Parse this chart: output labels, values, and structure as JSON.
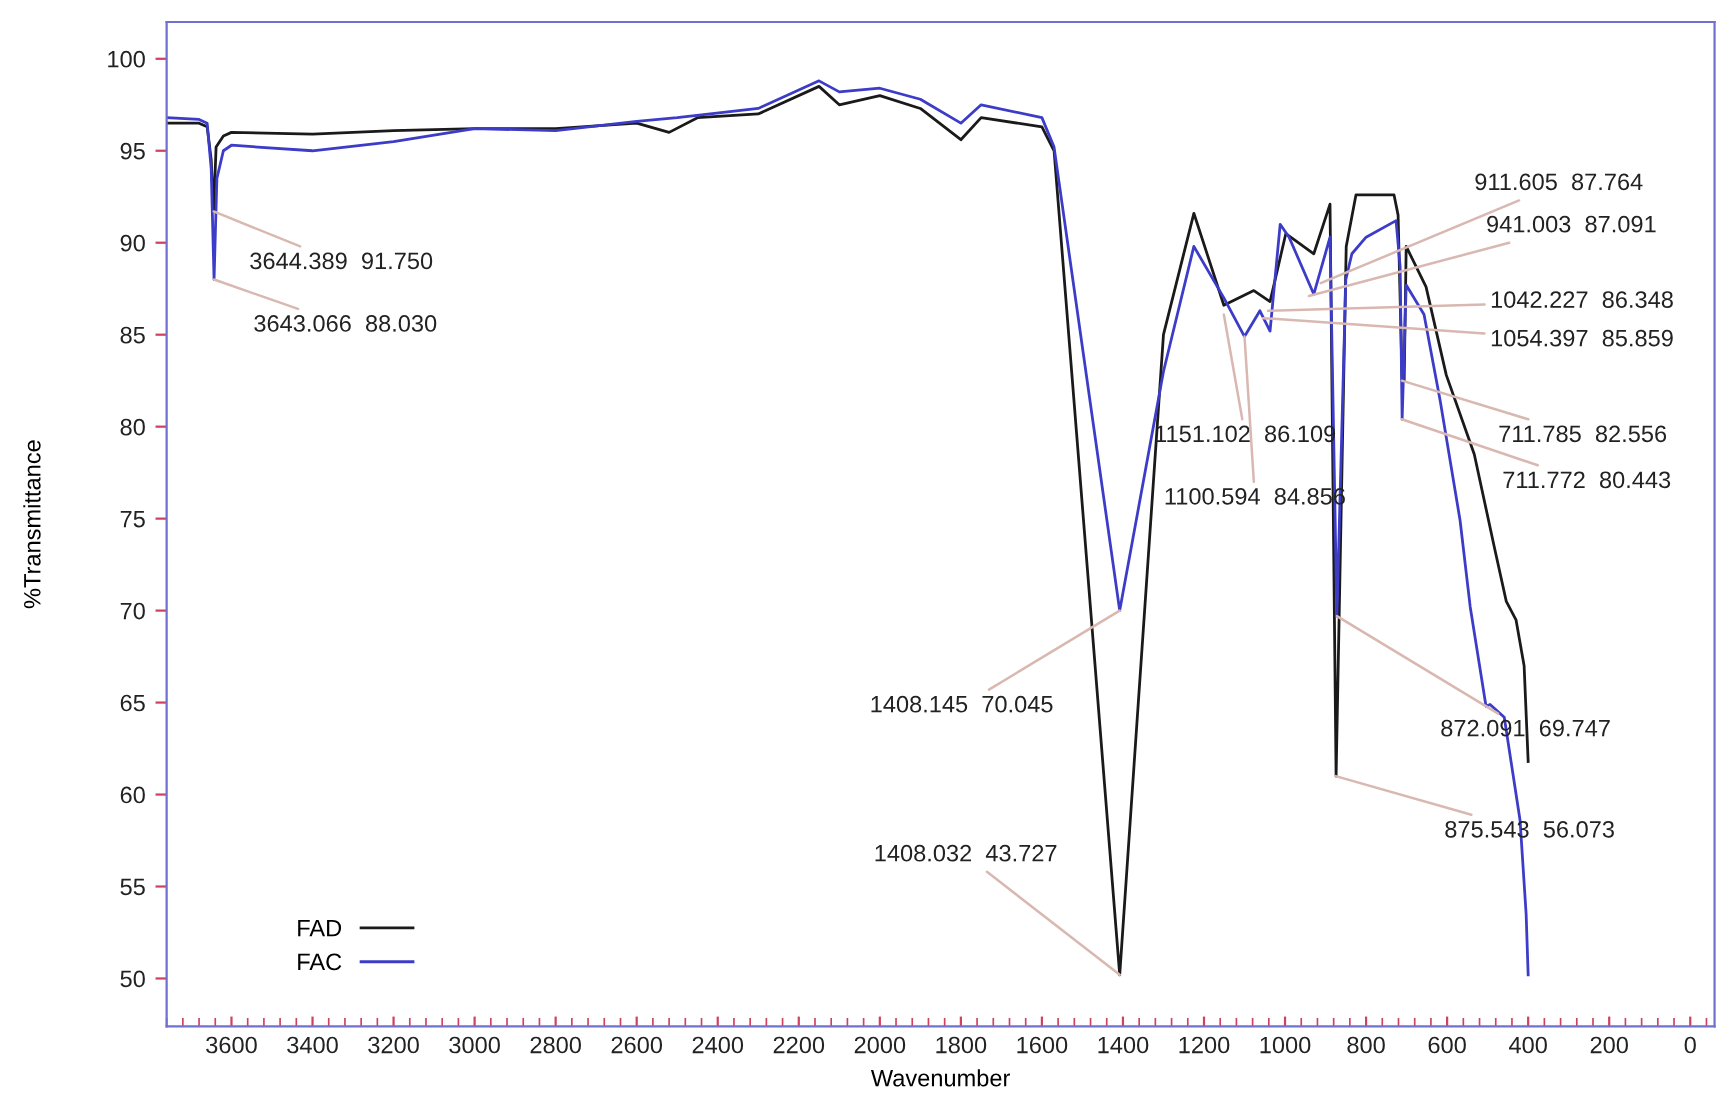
{
  "chart_data": {
    "type": "line",
    "xlabel": "Wavenumber",
    "ylabel": "%Transmittance",
    "xlim": [
      3760,
      -60
    ],
    "ylim": [
      47.4,
      102
    ],
    "xticks": [
      3600,
      3400,
      3200,
      3000,
      2800,
      2600,
      2400,
      2200,
      2000,
      1800,
      1600,
      1400,
      1200,
      1000,
      800,
      600,
      400,
      200,
      0
    ],
    "yticks": [
      50,
      55,
      60,
      65,
      70,
      75,
      80,
      85,
      90,
      95,
      100
    ],
    "grid": false,
    "legend": "bottom left",
    "marker": "none",
    "line_style": "solid",
    "series": [
      {
        "name": "FAD",
        "color": "#1a1a1a",
        "x": [
          3760,
          3680,
          3660,
          3650,
          3644,
          3638,
          3620,
          3600,
          3400,
          3200,
          3000,
          2800,
          2600,
          2520,
          2450,
          2300,
          2150,
          2100,
          2000,
          1900,
          1800,
          1750,
          1600,
          1570,
          1408,
          1300,
          1225,
          1151,
          1077,
          1037,
          998,
          929,
          889,
          874,
          849,
          825,
          731,
          721,
          711,
          706,
          701,
          652,
          602,
          533,
          484,
          454,
          430,
          410,
          400
        ],
        "values": [
          96.5,
          96.5,
          96.3,
          94.5,
          91.7,
          95.2,
          95.8,
          96.0,
          95.9,
          96.1,
          96.2,
          96.2,
          96.5,
          96.0,
          96.8,
          97.0,
          98.5,
          97.5,
          98.0,
          97.3,
          95.6,
          96.8,
          96.3,
          95.0,
          50.2,
          85.0,
          91.6,
          86.6,
          87.4,
          86.8,
          90.5,
          89.4,
          92.1,
          61.0,
          89.8,
          92.6,
          92.6,
          91.5,
          82.5,
          82.5,
          89.8,
          87.6,
          82.8,
          78.5,
          73.5,
          70.5,
          69.5,
          67.0,
          61.8
        ]
      },
      {
        "name": "FAC",
        "color": "#3c3cc8",
        "x": [
          3760,
          3680,
          3660,
          3650,
          3643,
          3636,
          3620,
          3600,
          3400,
          3200,
          3000,
          2800,
          2600,
          2500,
          2300,
          2150,
          2100,
          2000,
          1900,
          1800,
          1750,
          1600,
          1570,
          1408,
          1300,
          1225,
          1151,
          1100,
          1062,
          1037,
          1012,
          990,
          929,
          889,
          872,
          850,
          835,
          800,
          726,
          716,
          711,
          701,
          657,
          617,
          568,
          543,
          504,
          494,
          459,
          420,
          405,
          400
        ],
        "values": [
          96.8,
          96.7,
          96.5,
          94.0,
          88.0,
          93.5,
          95.0,
          95.3,
          95.0,
          95.5,
          96.2,
          96.1,
          96.6,
          96.8,
          97.3,
          98.8,
          98.2,
          98.4,
          97.8,
          96.5,
          97.5,
          96.8,
          95.2,
          70.0,
          83.0,
          89.8,
          87.0,
          84.9,
          86.3,
          85.2,
          91.0,
          90.3,
          87.2,
          90.3,
          69.7,
          88.0,
          89.4,
          90.3,
          91.2,
          88.7,
          80.4,
          87.7,
          86.1,
          81.4,
          74.9,
          70.2,
          64.8,
          64.9,
          64.2,
          58.6,
          53.5,
          50.2
        ]
      }
    ],
    "annotations": [
      {
        "text": "3644.389  91.750",
        "x": 3644,
        "y": 91.7
      },
      {
        "text": "3643.066  88.030",
        "x": 3643,
        "y": 88.0
      },
      {
        "text": "911.605  87.764",
        "x": 912,
        "y": 87.8
      },
      {
        "text": "941.003  87.091",
        "x": 941,
        "y": 87.1
      },
      {
        "text": "1042.227  86.348",
        "x": 1042,
        "y": 86.3
      },
      {
        "text": "1054.397  85.859",
        "x": 1054,
        "y": 85.9
      },
      {
        "text": "1151.102  86.109",
        "x": 1151,
        "y": 86.1
      },
      {
        "text": "1100.594  84.856",
        "x": 1100,
        "y": 84.9
      },
      {
        "text": "711.785  82.556",
        "x": 711.8,
        "y": 82.5
      },
      {
        "text": "711.772  80.443",
        "x": 711.8,
        "y": 80.4
      },
      {
        "text": "1408.145  70.045",
        "x": 1408,
        "y": 70.0
      },
      {
        "text": "1408.032  43.727",
        "x": 1408,
        "y": 50.2
      },
      {
        "text": "872.091  69.747",
        "x": 872,
        "y": 69.7
      },
      {
        "text": "875.543  56.073",
        "x": 875,
        "y": 61.0
      }
    ]
  }
}
